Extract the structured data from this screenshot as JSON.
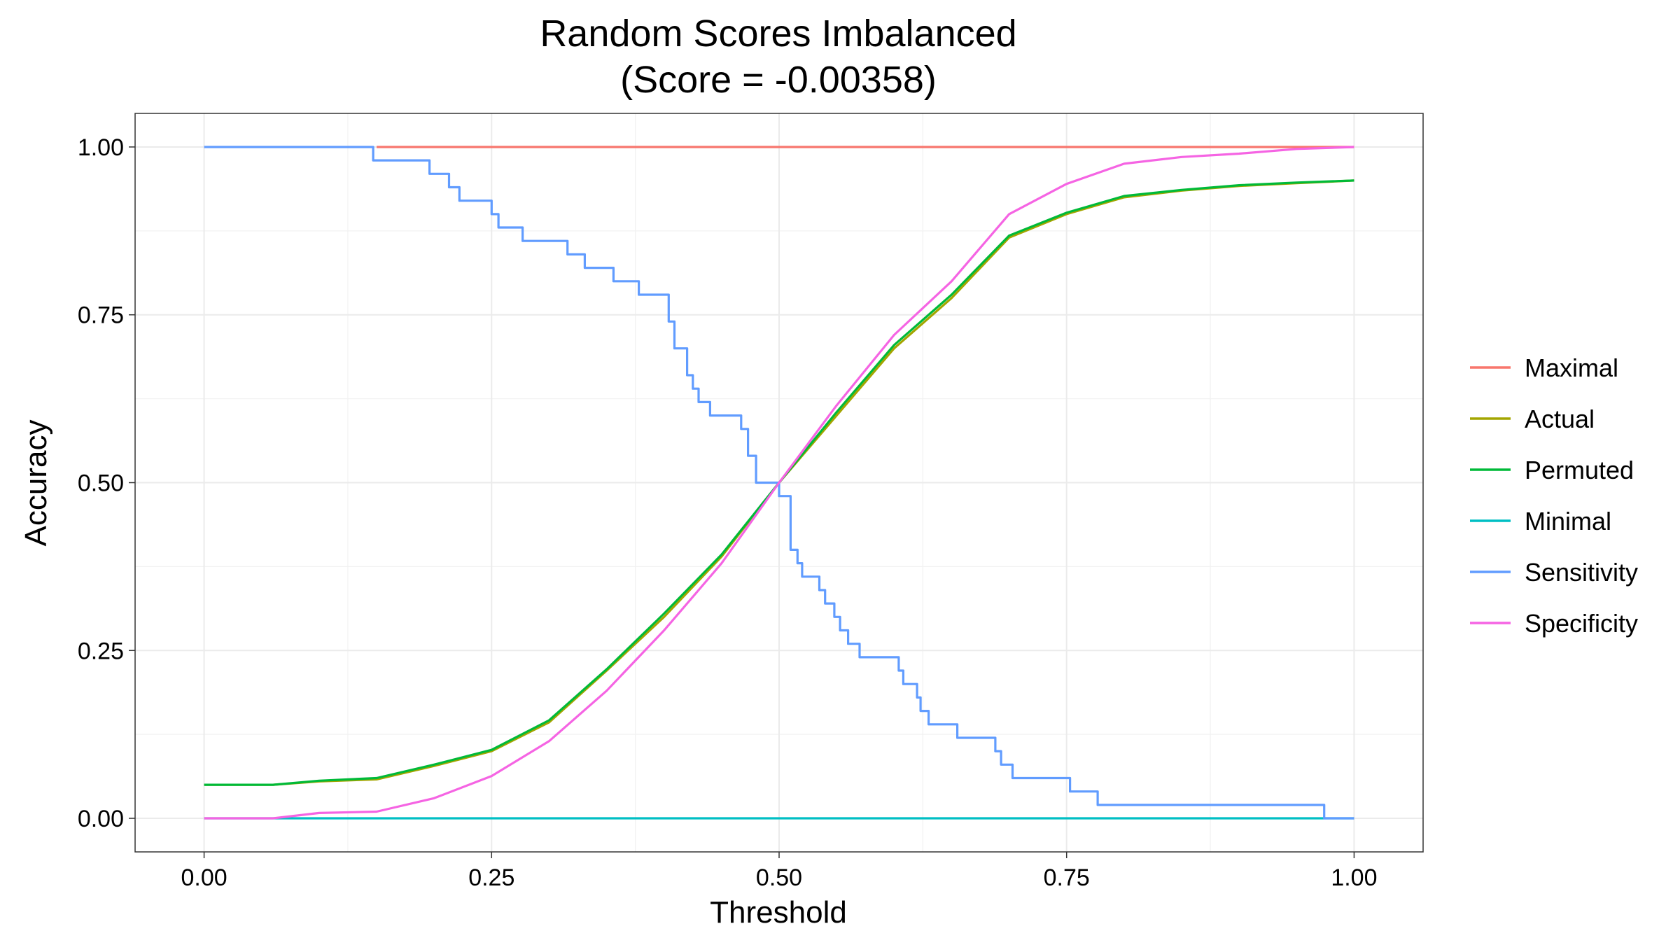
{
  "chart_data": {
    "type": "line",
    "title": "Random Scores Imbalanced",
    "subtitle": "(Score = -0.00358)",
    "xlabel": "Threshold",
    "ylabel": "Accuracy",
    "xlim": [
      -0.06,
      1.06
    ],
    "ylim": [
      -0.05,
      1.05
    ],
    "x_ticks": [
      "0.00",
      "0.25",
      "0.50",
      "0.75",
      "1.00"
    ],
    "y_ticks": [
      "0.00",
      "0.25",
      "0.50",
      "0.75",
      "1.00"
    ],
    "grid": true,
    "legend_position": "right",
    "series": [
      {
        "name": "Maximal",
        "color": "#F8766D",
        "step": false,
        "points": [
          [
            0.15,
            1.0
          ],
          [
            1.0,
            1.0
          ]
        ]
      },
      {
        "name": "Actual",
        "color": "#A3A500",
        "step": false,
        "points": [
          [
            0.0,
            0.05
          ],
          [
            0.06,
            0.05
          ],
          [
            0.1,
            0.055
          ],
          [
            0.15,
            0.058
          ],
          [
            0.2,
            0.078
          ],
          [
            0.25,
            0.1
          ],
          [
            0.3,
            0.143
          ],
          [
            0.35,
            0.22
          ],
          [
            0.4,
            0.3
          ],
          [
            0.45,
            0.39
          ],
          [
            0.5,
            0.5
          ],
          [
            0.55,
            0.6
          ],
          [
            0.6,
            0.7
          ],
          [
            0.65,
            0.775
          ],
          [
            0.7,
            0.865
          ],
          [
            0.75,
            0.9
          ],
          [
            0.8,
            0.925
          ],
          [
            0.85,
            0.935
          ],
          [
            0.9,
            0.942
          ],
          [
            0.95,
            0.946
          ],
          [
            1.0,
            0.95
          ]
        ]
      },
      {
        "name": "Permuted",
        "color": "#00BA38",
        "step": false,
        "points": [
          [
            0.0,
            0.05
          ],
          [
            0.06,
            0.05
          ],
          [
            0.1,
            0.056
          ],
          [
            0.15,
            0.06
          ],
          [
            0.2,
            0.08
          ],
          [
            0.25,
            0.102
          ],
          [
            0.3,
            0.146
          ],
          [
            0.35,
            0.222
          ],
          [
            0.4,
            0.305
          ],
          [
            0.45,
            0.393
          ],
          [
            0.5,
            0.5
          ],
          [
            0.55,
            0.605
          ],
          [
            0.6,
            0.705
          ],
          [
            0.65,
            0.78
          ],
          [
            0.7,
            0.868
          ],
          [
            0.75,
            0.902
          ],
          [
            0.8,
            0.927
          ],
          [
            0.85,
            0.936
          ],
          [
            0.9,
            0.943
          ],
          [
            0.95,
            0.947
          ],
          [
            1.0,
            0.95
          ]
        ]
      },
      {
        "name": "Minimal",
        "color": "#00BFC4",
        "step": false,
        "points": [
          [
            0.0,
            0.0
          ],
          [
            1.0,
            0.0
          ]
        ]
      },
      {
        "name": "Sensitivity",
        "color": "#619CFF",
        "step": true,
        "points": [
          [
            0.0,
            1.0
          ],
          [
            0.147,
            0.98
          ],
          [
            0.196,
            0.96
          ],
          [
            0.213,
            0.94
          ],
          [
            0.222,
            0.92
          ],
          [
            0.25,
            0.9
          ],
          [
            0.256,
            0.88
          ],
          [
            0.277,
            0.86
          ],
          [
            0.316,
            0.84
          ],
          [
            0.331,
            0.82
          ],
          [
            0.356,
            0.8
          ],
          [
            0.378,
            0.78
          ],
          [
            0.404,
            0.74
          ],
          [
            0.409,
            0.7
          ],
          [
            0.42,
            0.66
          ],
          [
            0.425,
            0.64
          ],
          [
            0.43,
            0.62
          ],
          [
            0.44,
            0.6
          ],
          [
            0.467,
            0.58
          ],
          [
            0.473,
            0.54
          ],
          [
            0.48,
            0.5
          ],
          [
            0.5,
            0.48
          ],
          [
            0.51,
            0.4
          ],
          [
            0.516,
            0.38
          ],
          [
            0.52,
            0.36
          ],
          [
            0.535,
            0.34
          ],
          [
            0.54,
            0.32
          ],
          [
            0.548,
            0.3
          ],
          [
            0.553,
            0.28
          ],
          [
            0.56,
            0.26
          ],
          [
            0.57,
            0.24
          ],
          [
            0.604,
            0.22
          ],
          [
            0.608,
            0.2
          ],
          [
            0.62,
            0.18
          ],
          [
            0.623,
            0.16
          ],
          [
            0.63,
            0.14
          ],
          [
            0.655,
            0.12
          ],
          [
            0.688,
            0.1
          ],
          [
            0.693,
            0.08
          ],
          [
            0.703,
            0.06
          ],
          [
            0.753,
            0.04
          ],
          [
            0.777,
            0.02
          ],
          [
            0.974,
            0.0
          ],
          [
            1.0,
            0.0
          ]
        ]
      },
      {
        "name": "Specificity",
        "color": "#F564E3",
        "step": false,
        "points": [
          [
            0.0,
            0.0
          ],
          [
            0.06,
            0.0
          ],
          [
            0.1,
            0.008
          ],
          [
            0.15,
            0.01
          ],
          [
            0.2,
            0.03
          ],
          [
            0.25,
            0.063
          ],
          [
            0.3,
            0.115
          ],
          [
            0.35,
            0.19
          ],
          [
            0.4,
            0.28
          ],
          [
            0.45,
            0.38
          ],
          [
            0.5,
            0.5
          ],
          [
            0.55,
            0.615
          ],
          [
            0.6,
            0.72
          ],
          [
            0.65,
            0.8
          ],
          [
            0.7,
            0.9
          ],
          [
            0.75,
            0.945
          ],
          [
            0.8,
            0.975
          ],
          [
            0.85,
            0.985
          ],
          [
            0.9,
            0.99
          ],
          [
            0.95,
            0.997
          ],
          [
            1.0,
            1.0
          ]
        ]
      }
    ]
  }
}
